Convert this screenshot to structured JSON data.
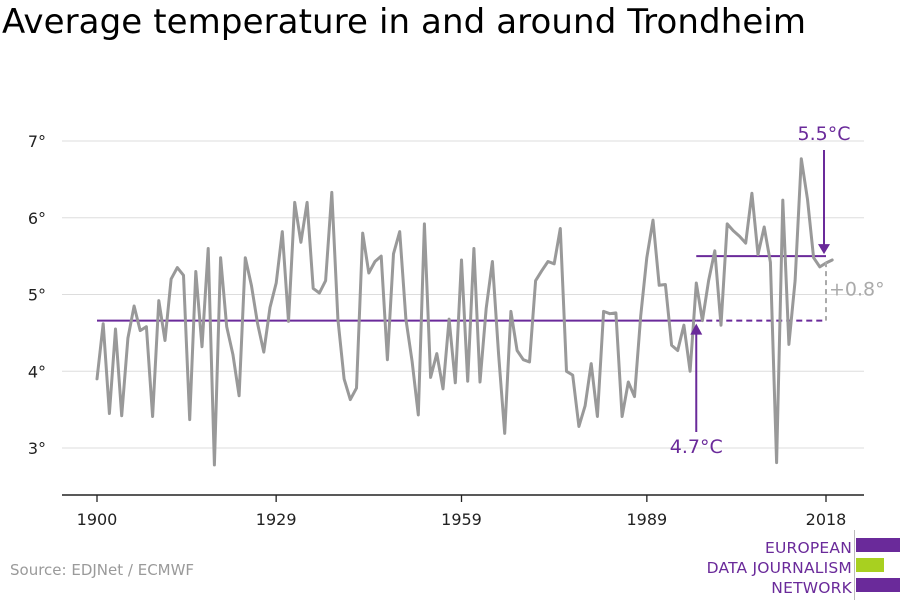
{
  "title": "Average temperature in and around Trondheim",
  "source": "Source: EDJNet / ECMWF",
  "logo": {
    "lines": [
      "EUROPEAN",
      "DATA JOURNALISM",
      "NETWORK"
    ]
  },
  "colors": {
    "line": "#999999",
    "accent": "#6a2a9a",
    "grid": "#dddddd",
    "logo_green": "#a8d020"
  },
  "annotations": {
    "recent_avg": "5.5°C",
    "historic_avg": "4.7°C",
    "delta": "+0.8°"
  },
  "chart_data": {
    "type": "line",
    "title": "Average temperature in and around Trondheim",
    "xlabel": "",
    "ylabel": "",
    "x_ticks": [
      1900,
      1929,
      1959,
      1989,
      2018
    ],
    "y_ticks": [
      "3°",
      "4°",
      "5°",
      "6°",
      "7°"
    ],
    "y_tick_values": [
      3,
      4,
      5,
      6,
      7
    ],
    "ylim": [
      2.4,
      7.5
    ],
    "xlim": [
      1898,
      2020
    ],
    "grid": true,
    "x": [
      1900,
      1901,
      1902,
      1903,
      1904,
      1905,
      1906,
      1907,
      1908,
      1909,
      1910,
      1911,
      1912,
      1913,
      1914,
      1915,
      1916,
      1917,
      1918,
      1919,
      1920,
      1921,
      1922,
      1923,
      1924,
      1925,
      1926,
      1927,
      1928,
      1929,
      1930,
      1931,
      1932,
      1933,
      1934,
      1935,
      1936,
      1937,
      1938,
      1939,
      1940,
      1941,
      1942,
      1943,
      1944,
      1945,
      1946,
      1947,
      1948,
      1949,
      1950,
      1951,
      1952,
      1953,
      1954,
      1955,
      1956,
      1957,
      1958,
      1959,
      1960,
      1961,
      1962,
      1963,
      1964,
      1965,
      1966,
      1967,
      1968,
      1969,
      1970,
      1971,
      1972,
      1973,
      1974,
      1975,
      1976,
      1977,
      1978,
      1979,
      1980,
      1981,
      1982,
      1983,
      1984,
      1985,
      1986,
      1987,
      1988,
      1989,
      1990,
      1991,
      1992,
      1993,
      1994,
      1995,
      1996,
      1997,
      1998,
      1999,
      2000,
      2001,
      2002,
      2003,
      2004,
      2005,
      2006,
      2007,
      2008,
      2009,
      2010,
      2011,
      2012,
      2013,
      2014,
      2015,
      2016,
      2017,
      2018,
      2019
    ],
    "series": [
      {
        "values": [
          3.9,
          4.62,
          3.45,
          4.55,
          3.42,
          4.43,
          4.85,
          4.53,
          4.58,
          3.41,
          4.92,
          4.4,
          5.2,
          5.35,
          5.25,
          3.37,
          5.3,
          4.32,
          5.6,
          2.78,
          5.48,
          4.58,
          4.22,
          3.68,
          5.48,
          5.12,
          4.62,
          4.25,
          4.83,
          5.15,
          5.82,
          4.65,
          6.2,
          5.68,
          6.2,
          5.08,
          5.02,
          5.18,
          6.33,
          4.68,
          3.9,
          3.63,
          3.78,
          5.8,
          5.28,
          5.43,
          5.5,
          4.15,
          5.53,
          5.82,
          4.68,
          4.13,
          3.43,
          5.92,
          3.92,
          4.23,
          3.77,
          4.68,
          3.85,
          5.45,
          3.87,
          5.6,
          3.86,
          4.82,
          5.43,
          4.22,
          3.19,
          4.78,
          4.27,
          4.15,
          4.12,
          5.18,
          5.31,
          5.43,
          5.4,
          5.86,
          4.0,
          3.95,
          3.28,
          3.55,
          4.1,
          3.41,
          4.78,
          4.75,
          4.76,
          3.41,
          3.86,
          3.67,
          4.72,
          5.48,
          5.97,
          5.12,
          5.13,
          4.34,
          4.27,
          4.6,
          4.0,
          5.15,
          4.66,
          5.18,
          5.57,
          4.6,
          5.92,
          5.83,
          5.76,
          5.67,
          6.32,
          5.52,
          5.88,
          5.42,
          2.81,
          6.23,
          4.35,
          5.18,
          6.77,
          6.24,
          5.48,
          5.36,
          5.41,
          5.45
        ]
      }
    ],
    "reference_lines": [
      {
        "label": "4.7°C",
        "value": 4.66,
        "from": 1900,
        "to": 2018,
        "dashed_from": 1997
      },
      {
        "label": "5.5°C",
        "value": 5.5,
        "from": 1997,
        "to": 2018
      }
    ],
    "difference": "+0.8°"
  }
}
